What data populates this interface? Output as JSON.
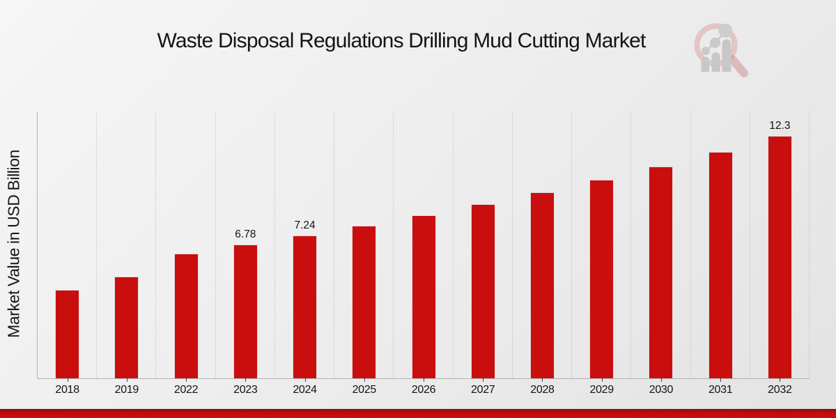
{
  "chart_data": {
    "type": "bar",
    "title": "Waste Disposal Regulations Drilling Mud Cutting Market",
    "ylabel": "Market Value in USD Billion",
    "xlabel": "",
    "categories": [
      "2018",
      "2019",
      "2022",
      "2023",
      "2024",
      "2025",
      "2026",
      "2027",
      "2028",
      "2029",
      "2030",
      "2031",
      "2032"
    ],
    "values": [
      4.48,
      5.18,
      6.33,
      6.78,
      7.24,
      7.74,
      8.27,
      8.83,
      9.44,
      10.08,
      10.77,
      11.51,
      12.3
    ],
    "bar_labels": [
      "",
      "",
      "",
      "6.78",
      "7.24",
      "",
      "",
      "",
      "",
      "",
      "",
      "",
      "12.3"
    ],
    "ylim": [
      0,
      13.55
    ],
    "grid": "vertical-dotted-column-separators",
    "legend": "none",
    "bar_color": "#ca0e0e",
    "label_color": "#111111",
    "axis_color": "#b2b2b2"
  },
  "branding": {
    "logo_icon": "magnifier-bar-chart-icon",
    "logo_ring_color": "#cf6a6a",
    "logo_glyph_color": "#c7c7c7",
    "footer_accent_color": "#c40d0d"
  }
}
